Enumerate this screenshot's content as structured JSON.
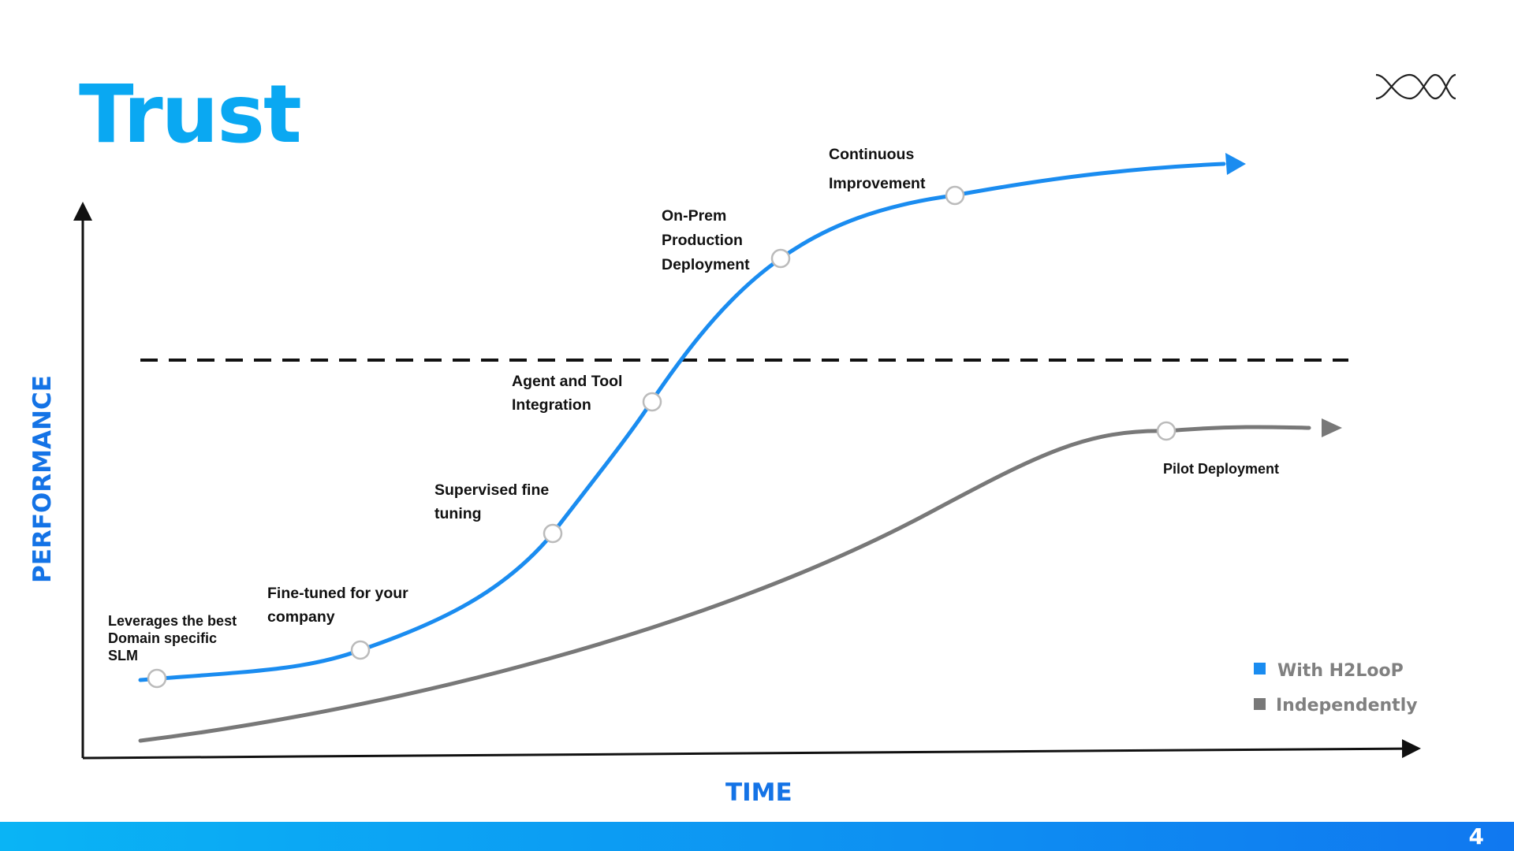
{
  "title": "Trust",
  "logo": {
    "icon": "h2loop-logo-icon"
  },
  "colors": {
    "title": "#0aa8f2",
    "with_h2loop": "#1a8cf0",
    "independently": "#787878",
    "axis_titles": "#1473e6",
    "axis": "#111111",
    "footer_start": "#0ab4f5",
    "footer_end": "#1078f0",
    "footer_text": "#ffffff"
  },
  "chart": {
    "x_axis_label": "TIME",
    "y_axis_label": "PERFORMANCE",
    "threshold_line": "dashed",
    "curves": [
      {
        "name": "With H2LooP",
        "color": "#1a8cf0"
      },
      {
        "name": "Independently",
        "color": "#787878"
      }
    ],
    "milestones": [
      {
        "curve": "With H2LooP",
        "lines": [
          "Leverages the best",
          "Domain specific",
          "SLM"
        ]
      },
      {
        "curve": "With H2LooP",
        "lines": [
          "Fine-tuned for your",
          "company"
        ]
      },
      {
        "curve": "With H2LooP",
        "lines": [
          "Supervised fine",
          "tuning"
        ]
      },
      {
        "curve": "With H2LooP",
        "lines": [
          "Agent and Tool",
          "Integration"
        ]
      },
      {
        "curve": "With H2LooP",
        "lines": [
          "On-Prem",
          "Production",
          "Deployment"
        ]
      },
      {
        "curve": "With H2LooP",
        "lines": [
          "Continuous",
          "Improvement"
        ]
      },
      {
        "curve": "Independently",
        "lines": [
          "Pilot Deployment"
        ]
      }
    ],
    "legend": [
      {
        "label": "With H2LooP",
        "color": "#1a8cf0"
      },
      {
        "label": "Independently",
        "color": "#787878"
      }
    ]
  },
  "footer": {
    "page_number": "4"
  }
}
